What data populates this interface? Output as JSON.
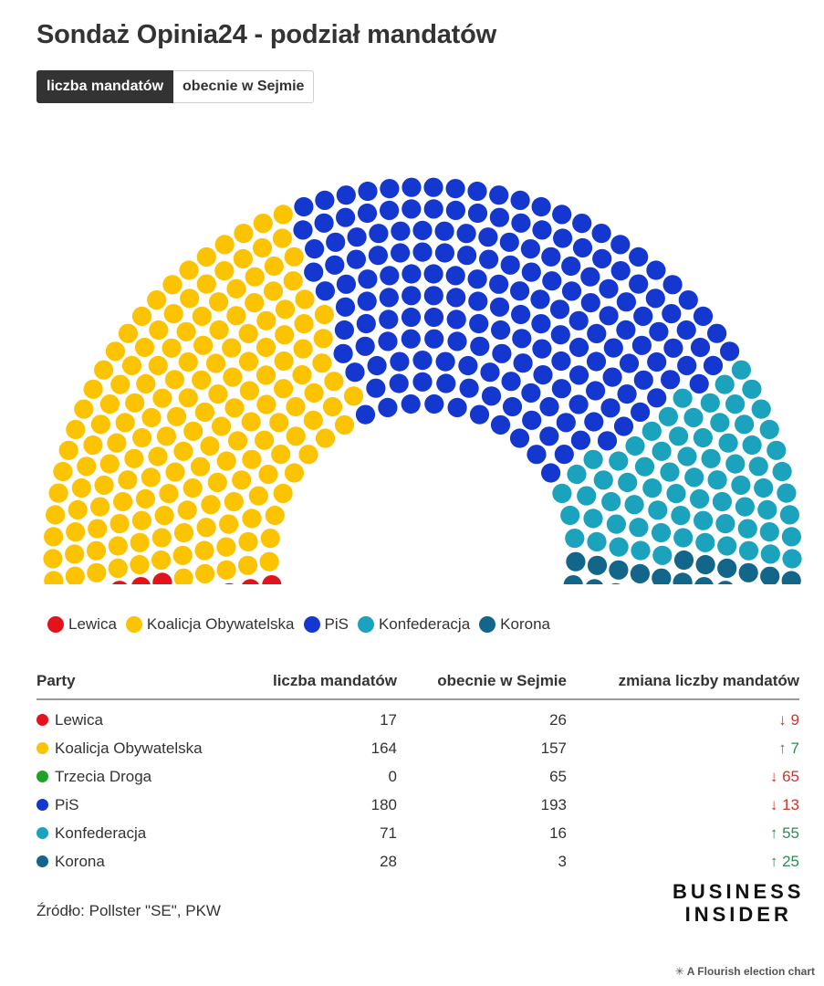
{
  "title": "Sondaż Opinia24 - podział mandatów",
  "toggle": {
    "active": "liczba mandatów",
    "inactive": "obecnie w Sejmie"
  },
  "chart_data": {
    "type": "parliament",
    "total_seats": 460,
    "parties": [
      {
        "name": "Lewica",
        "seats": 17,
        "color": "#e3131b"
      },
      {
        "name": "Koalicja Obywatelska",
        "seats": 164,
        "color": "#fbc300"
      },
      {
        "name": "PiS",
        "seats": 180,
        "color": "#1437cf"
      },
      {
        "name": "Konfederacja",
        "seats": 71,
        "color": "#1ba2bc"
      },
      {
        "name": "Korona",
        "seats": 28,
        "color": "#12668a"
      }
    ]
  },
  "legend": [
    {
      "label": "Lewica",
      "color": "#e3131b"
    },
    {
      "label": "Koalicja Obywatelska",
      "color": "#fbc300"
    },
    {
      "label": "PiS",
      "color": "#1437cf"
    },
    {
      "label": "Konfederacja",
      "color": "#1ba2bc"
    },
    {
      "label": "Korona",
      "color": "#12668a"
    }
  ],
  "table": {
    "headers": [
      "Party",
      "liczba mandatów",
      "obecnie w Sejmie",
      "zmiana liczby mandatów"
    ],
    "rows": [
      {
        "party": "Lewica",
        "color": "#e3131b",
        "seats": "17",
        "current": "26",
        "change_arrow": "↓",
        "change": "9",
        "direction": "down"
      },
      {
        "party": "Koalicja Obywatelska",
        "color": "#fbc300",
        "seats": "164",
        "current": "157",
        "change_arrow": "↑",
        "change": "7",
        "direction": "up"
      },
      {
        "party": "Trzecia Droga",
        "color": "#22a12a",
        "seats": "0",
        "current": "65",
        "change_arrow": "↓",
        "change": "65",
        "direction": "down"
      },
      {
        "party": "PiS",
        "color": "#1437cf",
        "seats": "180",
        "current": "193",
        "change_arrow": "↓",
        "change": "13",
        "direction": "down"
      },
      {
        "party": "Konfederacja",
        "color": "#1ba2bc",
        "seats": "71",
        "current": "16",
        "change_arrow": "↑",
        "change": "55",
        "direction": "up"
      },
      {
        "party": "Korona",
        "color": "#12668a",
        "seats": "28",
        "current": "3",
        "change_arrow": "↑",
        "change": "25",
        "direction": "up"
      }
    ]
  },
  "source": "Źródło: Pollster \"SE\", PKW",
  "logo": {
    "line1": "BUSINESS",
    "line2": "INSIDER"
  },
  "flourish": "A Flourish election chart",
  "icons": {
    "flourish": "flourish-asterisk-icon"
  }
}
